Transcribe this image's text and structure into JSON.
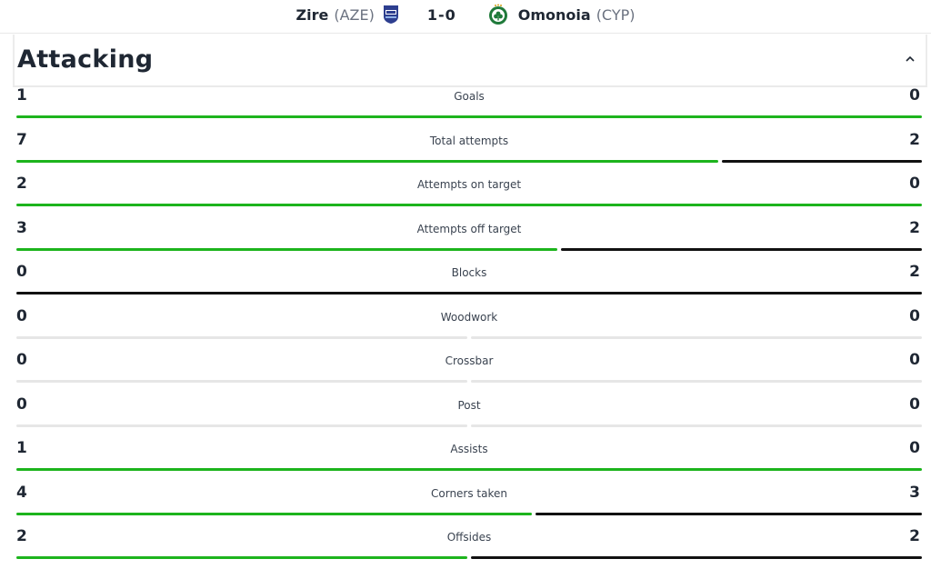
{
  "match": {
    "home_name": "Zire",
    "home_country": "(AZE)",
    "score": "1-0",
    "away_name": "Omonoia",
    "away_country": "(CYP)"
  },
  "section": {
    "title": "Attacking",
    "collapse_icon": "chevron-up-icon"
  },
  "colors": {
    "home": "#1db41d",
    "away": "#111111",
    "empty": "#e6e6e6"
  },
  "stats": [
    {
      "label": "Goals",
      "home": 1,
      "away": 0
    },
    {
      "label": "Total attempts",
      "home": 7,
      "away": 2
    },
    {
      "label": "Attempts on target",
      "home": 2,
      "away": 0
    },
    {
      "label": "Attempts off target",
      "home": 3,
      "away": 2
    },
    {
      "label": "Blocks",
      "home": 0,
      "away": 2
    },
    {
      "label": "Woodwork",
      "home": 0,
      "away": 0
    },
    {
      "label": "Crossbar",
      "home": 0,
      "away": 0
    },
    {
      "label": "Post",
      "home": 0,
      "away": 0
    },
    {
      "label": "Assists",
      "home": 1,
      "away": 0
    },
    {
      "label": "Corners taken",
      "home": 4,
      "away": 3
    },
    {
      "label": "Offsides",
      "home": 2,
      "away": 2
    }
  ]
}
